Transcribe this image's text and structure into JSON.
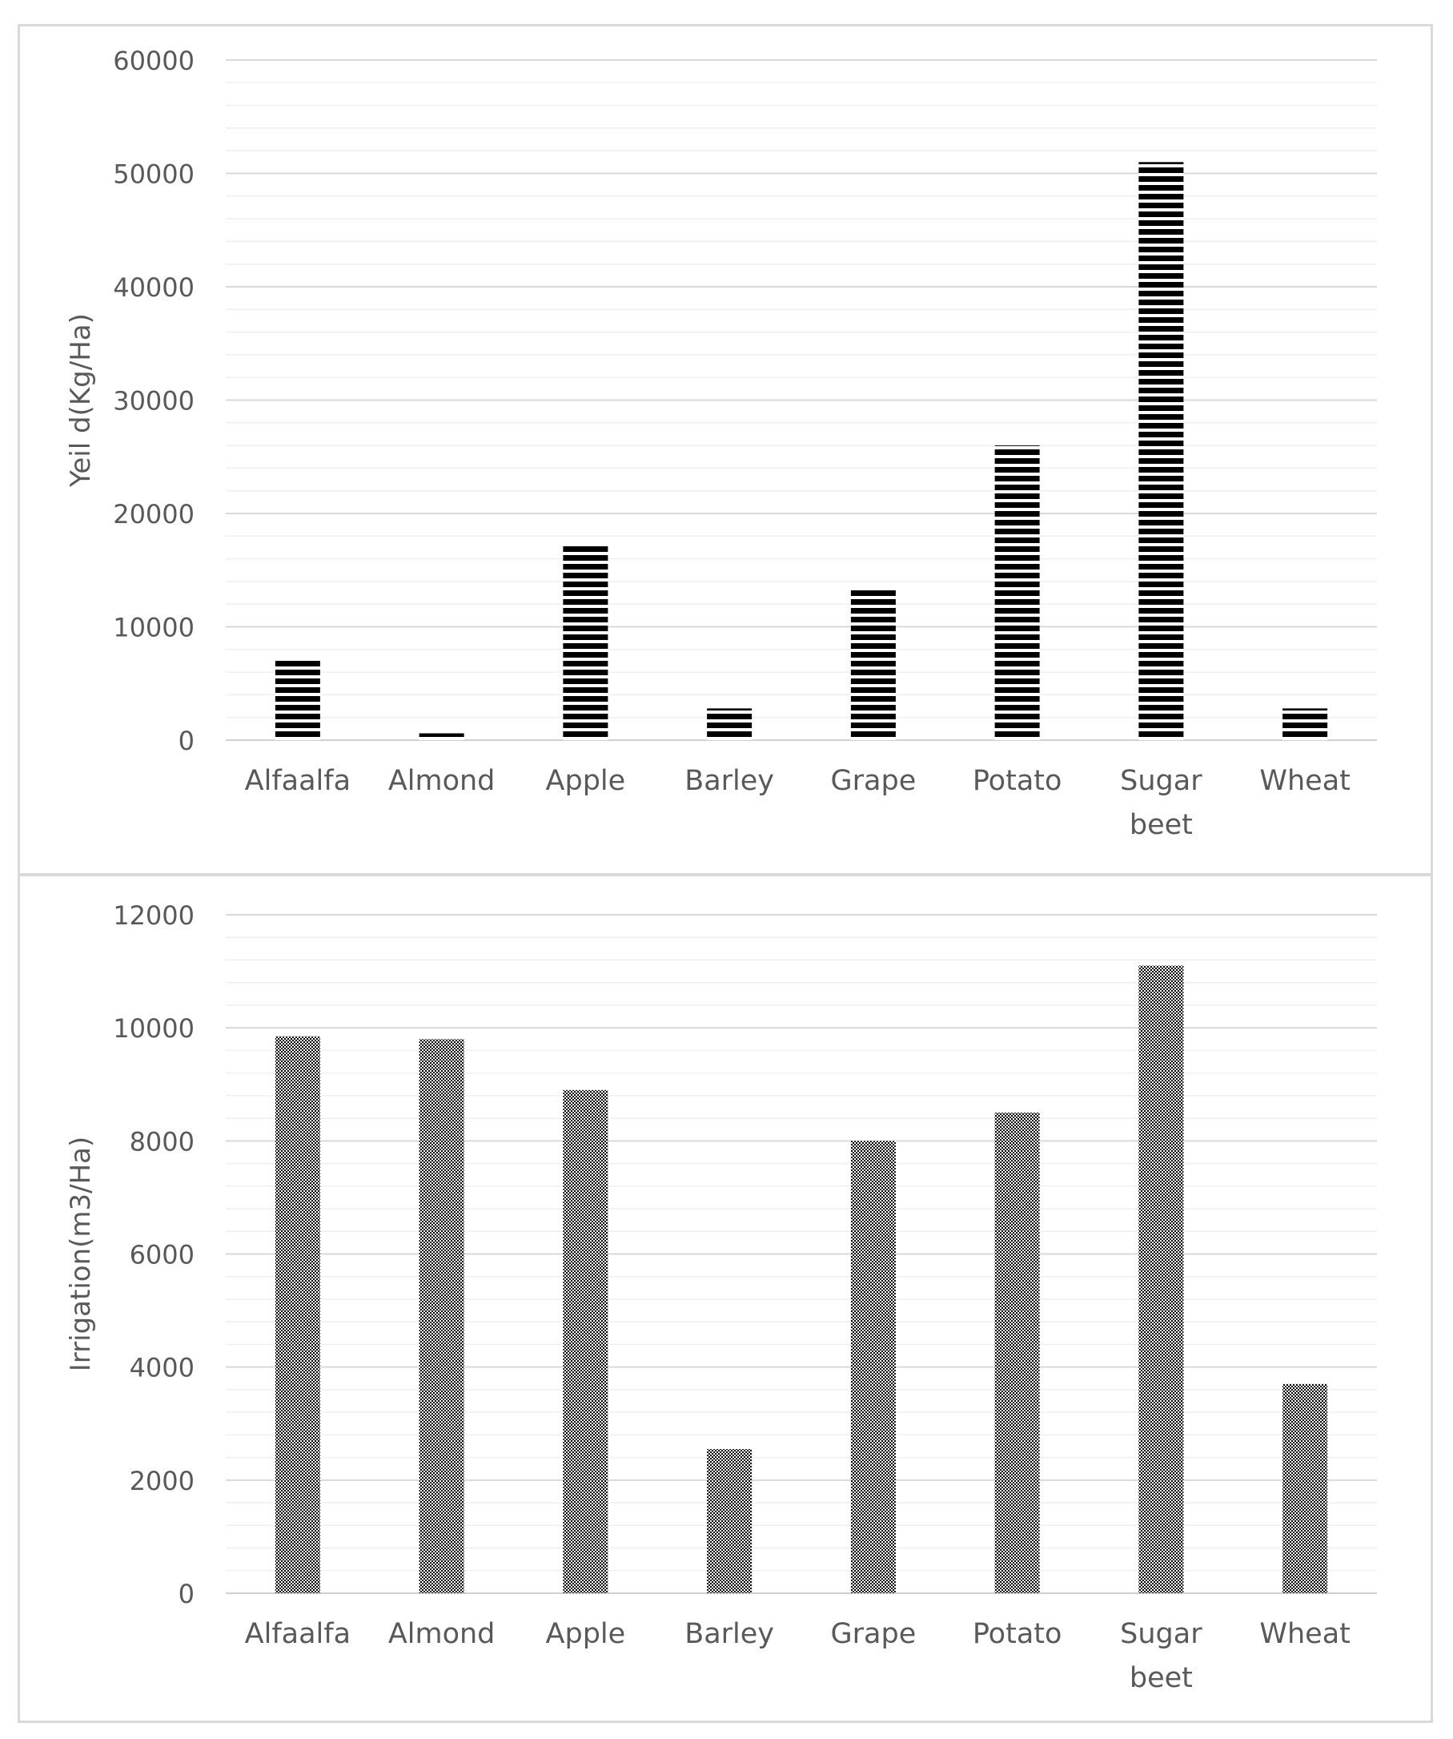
{
  "chart_data": [
    {
      "type": "bar",
      "categories": [
        [
          "Alfaalfa"
        ],
        [
          "Almond"
        ],
        [
          "Apple"
        ],
        [
          "Barley"
        ],
        [
          "Grape"
        ],
        [
          "Potato"
        ],
        [
          "Sugar",
          "beet"
        ],
        [
          "Wheat"
        ]
      ],
      "values": [
        7000,
        600,
        17200,
        2800,
        13300,
        26000,
        51000,
        2800
      ],
      "ylabel": "Yeil d(Kg/Ha)",
      "ylim": [
        0,
        60000
      ],
      "yticks": [
        0,
        10000,
        20000,
        30000,
        40000,
        50000,
        60000
      ],
      "grid": "major and minor horizontal",
      "pattern": "horizontal-stripes",
      "bar_color": "#000000"
    },
    {
      "type": "bar",
      "categories": [
        [
          "Alfaalfa"
        ],
        [
          "Almond"
        ],
        [
          "Apple"
        ],
        [
          "Barley"
        ],
        [
          "Grape"
        ],
        [
          "Potato"
        ],
        [
          "Sugar",
          "beet"
        ],
        [
          "Wheat"
        ]
      ],
      "values": [
        9850,
        9800,
        8900,
        2550,
        8000,
        8500,
        11100,
        3700
      ],
      "ylabel": "Irrigation(m3/Ha)",
      "ylim": [
        0,
        12000
      ],
      "yticks": [
        0,
        2000,
        4000,
        6000,
        8000,
        10000,
        12000
      ],
      "grid": "major and minor horizontal",
      "pattern": "checkered",
      "bar_color": "#000000"
    }
  ]
}
